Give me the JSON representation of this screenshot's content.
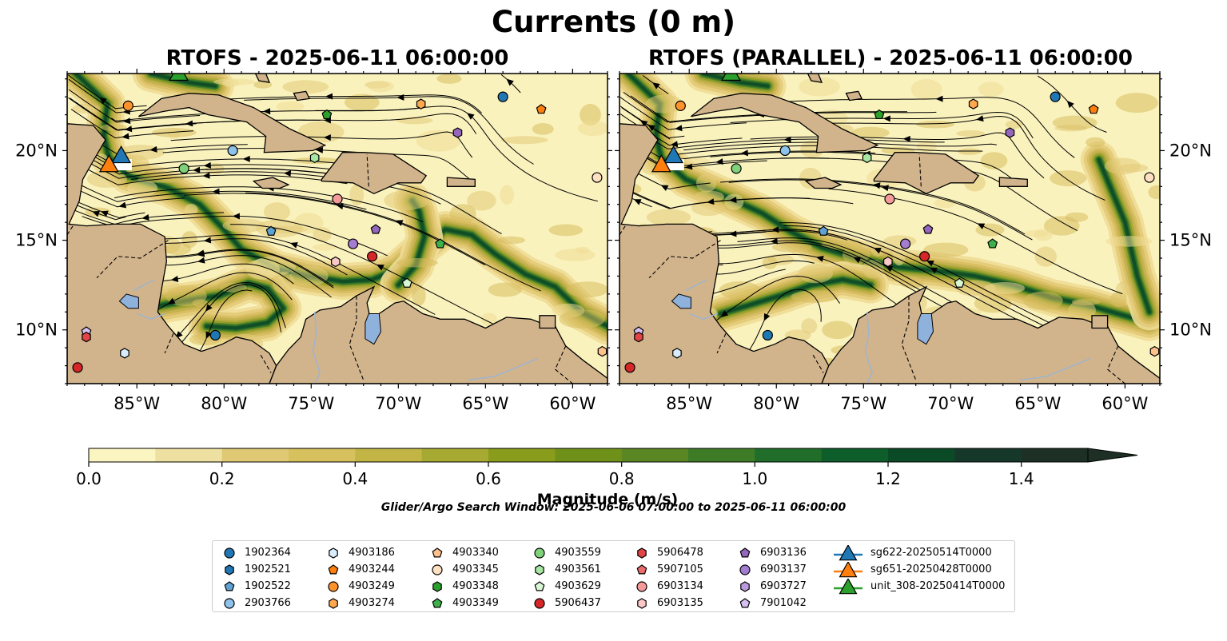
{
  "figure": {
    "suptitle": "Currents (0 m)",
    "panels": [
      {
        "title": "RTOFS - 2025-06-11 06:00:00"
      },
      {
        "title": "RTOFS (PARALLEL) - 2025-06-11 06:00:00"
      }
    ],
    "lon_ticks": [
      "85°W",
      "80°W",
      "75°W",
      "70°W",
      "65°W",
      "60°W"
    ],
    "lat_ticks": [
      "20°N",
      "15°N",
      "10°N"
    ],
    "extent": {
      "lon": [
        -89,
        -58
      ],
      "lat": [
        7,
        24.3
      ]
    },
    "colors": {
      "land": "#d2b48c",
      "lakes": "#8fb2dc",
      "rivers": "#a0b4cc",
      "ocean_low": "#faf2bd",
      "ocean_high": "#0e4a25",
      "streamlines": "#000000"
    }
  },
  "colorbar": {
    "label": "Magnitude (m/s)",
    "ticks": [
      "0.0",
      "0.2",
      "0.4",
      "0.6",
      "0.8",
      "1.0",
      "1.2",
      "1.4"
    ],
    "range": [
      0,
      1.5
    ],
    "extend": "max",
    "colors": [
      "#faf5c1",
      "#ede0a0",
      "#e0c975",
      "#d6c15e",
      "#c2b445",
      "#a7aa32",
      "#8a9c1c",
      "#6f911a",
      "#5a8624",
      "#3e7b27",
      "#216d2a",
      "#0e5e2b",
      "#0b4a26",
      "#16382a",
      "#1e3025"
    ]
  },
  "search_window": "Glider/Argo Search Window: 2025-06-06 07:00:00 to 2025-06-11 06:00:00",
  "legend": {
    "columns": [
      [
        {
          "label": "1902364",
          "marker": "circle",
          "color": "#1f77b4"
        },
        {
          "label": "1902521",
          "marker": "hexagon",
          "color": "#1f77b4"
        },
        {
          "label": "1902522",
          "marker": "pentagon",
          "color": "#5fa2d4"
        },
        {
          "label": "2903766",
          "marker": "circle",
          "color": "#8dc2ea"
        }
      ],
      [
        {
          "label": "4903186",
          "marker": "hexagon",
          "color": "#d8ecfb"
        },
        {
          "label": "4903244",
          "marker": "pentagon",
          "color": "#ff7f0e"
        },
        {
          "label": "4903249",
          "marker": "circle",
          "color": "#ff922a"
        },
        {
          "label": "4903274",
          "marker": "hexagon",
          "color": "#ffa84d"
        }
      ],
      [
        {
          "label": "4903340",
          "marker": "pentagon",
          "color": "#ffc08a"
        },
        {
          "label": "4903345",
          "marker": "circle",
          "color": "#ffe0c2"
        },
        {
          "label": "4903348",
          "marker": "hexagon",
          "color": "#2ca02c"
        },
        {
          "label": "4903349",
          "marker": "pentagon",
          "color": "#3cb04a"
        }
      ],
      [
        {
          "label": "4903559",
          "marker": "circle",
          "color": "#7fd27a"
        },
        {
          "label": "4903561",
          "marker": "hexagon",
          "color": "#a6e6a2"
        },
        {
          "label": "4903629",
          "marker": "pentagon",
          "color": "#d8f7d4"
        },
        {
          "label": "5906437",
          "marker": "circle",
          "color": "#d62728"
        }
      ],
      [
        {
          "label": "5906478",
          "marker": "hexagon",
          "color": "#e04444"
        },
        {
          "label": "5907105",
          "marker": "pentagon",
          "color": "#ec6b6b"
        },
        {
          "label": "6903134",
          "marker": "circle",
          "color": "#f49a9a"
        },
        {
          "label": "6903135",
          "marker": "hexagon",
          "color": "#fbc8c8"
        }
      ],
      [
        {
          "label": "6903136",
          "marker": "pentagon",
          "color": "#9467bd"
        },
        {
          "label": "6903137",
          "marker": "circle",
          "color": "#a47cd0"
        },
        {
          "label": "6903727",
          "marker": "hexagon",
          "color": "#bb99e0"
        },
        {
          "label": "7901042",
          "marker": "pentagon",
          "color": "#d6c0f2"
        }
      ],
      [
        {
          "label": "sg622-20250514T0000",
          "marker": "triangle",
          "color": "#1f77b4"
        },
        {
          "label": "sg651-20250428T0000",
          "marker": "triangle",
          "color": "#ff7f0e"
        },
        {
          "label": "unit_308-20250414T0000",
          "marker": "triangle",
          "color": "#2ca02c"
        }
      ]
    ]
  },
  "argo_floats": [
    {
      "lon": -64.0,
      "lat": 23.0,
      "marker": "circle",
      "color": "#1f77b4"
    },
    {
      "lon": -61.8,
      "lat": 22.3,
      "marker": "pentagon",
      "color": "#ff7f0e"
    },
    {
      "lon": -68.7,
      "lat": 22.6,
      "marker": "hexagon",
      "color": "#ffa84d"
    },
    {
      "lon": -85.5,
      "lat": 22.5,
      "marker": "circle",
      "color": "#ff922a"
    },
    {
      "lon": -74.1,
      "lat": 22.0,
      "marker": "pentagon",
      "color": "#2ca02c"
    },
    {
      "lon": -66.6,
      "lat": 21.0,
      "marker": "hexagon",
      "color": "#9467bd"
    },
    {
      "lon": -79.5,
      "lat": 20.0,
      "marker": "circle",
      "color": "#8dc2ea"
    },
    {
      "lon": -74.8,
      "lat": 19.6,
      "marker": "hexagon",
      "color": "#a6e6a2"
    },
    {
      "lon": -82.3,
      "lat": 19.0,
      "marker": "circle",
      "color": "#7fd27a"
    },
    {
      "lon": -58.6,
      "lat": 18.5,
      "marker": "circle",
      "color": "#ffe0c2"
    },
    {
      "lon": -73.5,
      "lat": 17.3,
      "marker": "circle",
      "color": "#f49a9a"
    },
    {
      "lon": -77.3,
      "lat": 15.5,
      "marker": "pentagon",
      "color": "#5fa2d4"
    },
    {
      "lon": -71.3,
      "lat": 15.6,
      "marker": "pentagon",
      "color": "#9467bd"
    },
    {
      "lon": -72.6,
      "lat": 14.8,
      "marker": "circle",
      "color": "#a47cd0"
    },
    {
      "lon": -67.6,
      "lat": 14.8,
      "marker": "pentagon",
      "color": "#3cb04a"
    },
    {
      "lon": -71.5,
      "lat": 14.1,
      "marker": "circle",
      "color": "#d62728"
    },
    {
      "lon": -73.6,
      "lat": 13.8,
      "marker": "hexagon",
      "color": "#fbc8c8"
    },
    {
      "lon": -69.5,
      "lat": 12.6,
      "marker": "pentagon",
      "color": "#d8f7d4"
    },
    {
      "lon": -80.5,
      "lat": 9.7,
      "marker": "circle",
      "color": "#1f77b4"
    },
    {
      "lon": -87.9,
      "lat": 9.9,
      "marker": "pentagon",
      "color": "#d6c0f2"
    },
    {
      "lon": -87.9,
      "lat": 9.6,
      "marker": "hexagon",
      "color": "#e04444"
    },
    {
      "lon": -85.7,
      "lat": 8.7,
      "marker": "hexagon",
      "color": "#d8ecfb"
    },
    {
      "lon": -88.4,
      "lat": 7.9,
      "marker": "circle",
      "color": "#d62728"
    },
    {
      "lon": -58.3,
      "lat": 8.8,
      "marker": "hexagon",
      "color": "#ffc08a"
    }
  ],
  "gliders": [
    {
      "lon": -85.9,
      "lat": 19.7,
      "color": "#1f77b4"
    },
    {
      "lon": -86.6,
      "lat": 19.2,
      "color": "#ff7f0e"
    },
    {
      "lon": -82.6,
      "lat": 24.3,
      "color": "#2ca02c"
    }
  ]
}
